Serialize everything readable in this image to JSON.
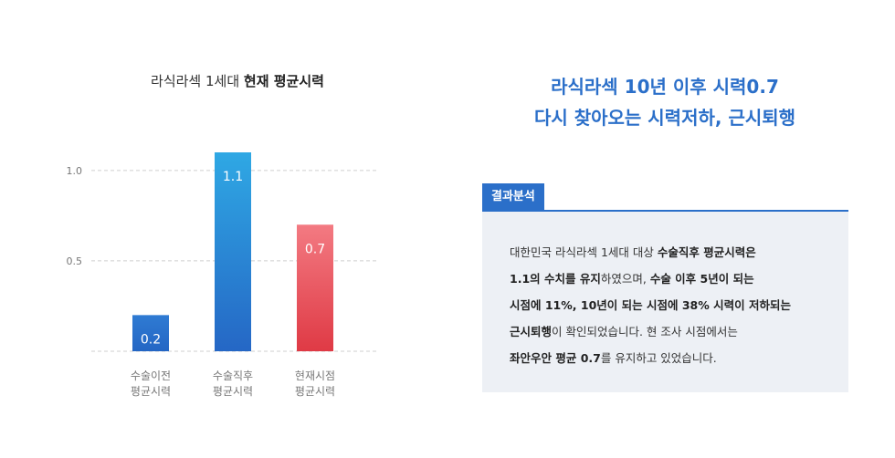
{
  "chart_title": {
    "normal": "라식라섹 1세대 ",
    "bold": "현재 평균시력"
  },
  "chart_data": {
    "type": "bar",
    "categories": [
      "수술이전\n평균시력",
      "수술직후\n평균시력",
      "현재시점\n평균시력"
    ],
    "values": [
      0.2,
      1.1,
      0.7
    ],
    "value_labels": [
      "0.2",
      "1.1",
      "0.7"
    ],
    "ylim": [
      0,
      1.1
    ],
    "yticks": [
      0.5,
      1.0
    ],
    "ytick_labels": [
      "0.5",
      "1.0"
    ],
    "grid": true,
    "colors": [
      "#2b6fc9",
      "#2e8fd6",
      "#e54f57"
    ]
  },
  "headline": {
    "line1": "라식라섹 10년 이후 시력0.7",
    "line2": "다시 찾아오는 시력저하, 근시퇴행"
  },
  "analysis": {
    "badge": "결과분석",
    "segments": [
      {
        "text": "대한민국 라식라섹 1세대 대상 ",
        "strong": false
      },
      {
        "text": "수술직후 평균시력은",
        "strong": true
      },
      {
        "text": "\n",
        "strong": false
      },
      {
        "text": "1.1의 수치를 유지",
        "strong": true
      },
      {
        "text": "하였으며, ",
        "strong": false
      },
      {
        "text": "수술 이후 5년이 되는",
        "strong": true
      },
      {
        "text": "\n",
        "strong": false
      },
      {
        "text": "시점에 11%, 10년이 되는 시점에 38% 시력이 저하되는",
        "strong": true
      },
      {
        "text": "\n",
        "strong": false
      },
      {
        "text": "근시퇴행",
        "strong": true
      },
      {
        "text": "이 확인되었습니다. 현 조사 시점에서는",
        "strong": false
      },
      {
        "text": "\n",
        "strong": false
      },
      {
        "text": "좌안우안 평균 0.7",
        "strong": true
      },
      {
        "text": "를 유지하고 있었습니다.",
        "strong": false
      }
    ]
  }
}
